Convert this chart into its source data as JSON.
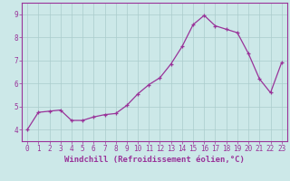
{
  "x": [
    0,
    1,
    2,
    3,
    4,
    5,
    6,
    7,
    8,
    9,
    10,
    11,
    12,
    13,
    14,
    15,
    16,
    17,
    18,
    19,
    20,
    21,
    22,
    23
  ],
  "y": [
    4.0,
    4.75,
    4.8,
    4.85,
    4.4,
    4.4,
    4.55,
    4.65,
    4.7,
    5.05,
    5.55,
    5.95,
    6.25,
    6.85,
    7.6,
    8.55,
    8.95,
    8.5,
    8.35,
    8.2,
    7.3,
    6.2,
    5.6,
    6.9
  ],
  "line_color": "#993399",
  "marker": "+",
  "marker_size": 3,
  "xlabel": "Windchill (Refroidissement éolien,°C)",
  "xlim": [
    -0.5,
    23.5
  ],
  "ylim": [
    3.5,
    9.5
  ],
  "yticks": [
    4,
    5,
    6,
    7,
    8,
    9
  ],
  "xticks": [
    0,
    1,
    2,
    3,
    4,
    5,
    6,
    7,
    8,
    9,
    10,
    11,
    12,
    13,
    14,
    15,
    16,
    17,
    18,
    19,
    20,
    21,
    22,
    23
  ],
  "bg_color": "#cce8e8",
  "grid_color": "#aacccc",
  "spine_color": "#993399",
  "tick_color": "#993399",
  "label_color": "#993399",
  "font_size_ticks": 5.5,
  "font_size_label": 6.5
}
